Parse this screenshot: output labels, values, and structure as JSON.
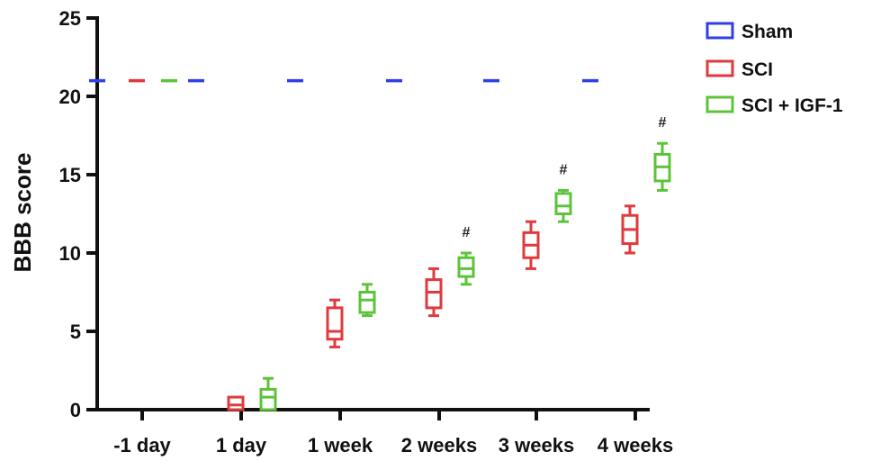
{
  "chart_data": {
    "type": "boxplot",
    "title": "",
    "xlabel": "",
    "ylabel": "BBB score",
    "ylim": [
      0,
      25
    ],
    "yticks": [
      "0",
      "5",
      "10",
      "15",
      "20",
      "25"
    ],
    "categories": [
      "-1 day",
      "1 day",
      "1 week",
      "2 weeks",
      "3 weeks",
      "4 weeks"
    ],
    "legend_position": "top-right",
    "series": [
      {
        "name": "Sham",
        "color": "#2f3fe8",
        "boxes": [
          {
            "min": 21,
            "q1": 21,
            "median": 21,
            "q3": 21,
            "max": 21
          },
          {
            "min": 21,
            "q1": 21,
            "median": 21,
            "q3": 21,
            "max": 21
          },
          {
            "min": 21,
            "q1": 21,
            "median": 21,
            "q3": 21,
            "max": 21
          },
          {
            "min": 21,
            "q1": 21,
            "median": 21,
            "q3": 21,
            "max": 21
          },
          {
            "min": 21,
            "q1": 21,
            "median": 21,
            "q3": 21,
            "max": 21
          },
          {
            "min": 21,
            "q1": 21,
            "median": 21,
            "q3": 21,
            "max": 21
          }
        ]
      },
      {
        "name": "SCI",
        "color": "#e03a3e",
        "boxes": [
          {
            "min": 21,
            "q1": 21,
            "median": 21,
            "q3": 21,
            "max": 21
          },
          {
            "min": 0,
            "q1": 0,
            "median": 0.3,
            "q3": 0.8,
            "max": 0.8
          },
          {
            "min": 4,
            "q1": 4.5,
            "median": 5,
            "q3": 6.5,
            "max": 7
          },
          {
            "min": 6,
            "q1": 6.5,
            "median": 7.5,
            "q3": 8.3,
            "max": 9
          },
          {
            "min": 9,
            "q1": 9.7,
            "median": 10.5,
            "q3": 11.3,
            "max": 12
          },
          {
            "min": 10,
            "q1": 10.6,
            "median": 11.5,
            "q3": 12.4,
            "max": 13
          }
        ]
      },
      {
        "name": "SCI + IGF-1",
        "color": "#5dc33a",
        "boxes": [
          {
            "min": 21,
            "q1": 21,
            "median": 21,
            "q3": 21,
            "max": 21
          },
          {
            "min": 0,
            "q1": 0,
            "median": 0.8,
            "q3": 1.3,
            "max": 2
          },
          {
            "min": 6,
            "q1": 6.2,
            "median": 7,
            "q3": 7.5,
            "max": 8
          },
          {
            "min": 8,
            "q1": 8.5,
            "median": 9,
            "q3": 9.7,
            "max": 10
          },
          {
            "min": 12,
            "q1": 12.5,
            "median": 13,
            "q3": 13.8,
            "max": 14
          },
          {
            "min": 14,
            "q1": 14.6,
            "median": 15.5,
            "q3": 16.3,
            "max": 17
          }
        ]
      }
    ],
    "annotations": [
      {
        "text": "#",
        "category": "2 weeks",
        "series": "SCI + IGF-1"
      },
      {
        "text": "#",
        "category": "3 weeks",
        "series": "SCI + IGF-1"
      },
      {
        "text": "#",
        "category": "4 weeks",
        "series": "SCI + IGF-1"
      }
    ]
  }
}
